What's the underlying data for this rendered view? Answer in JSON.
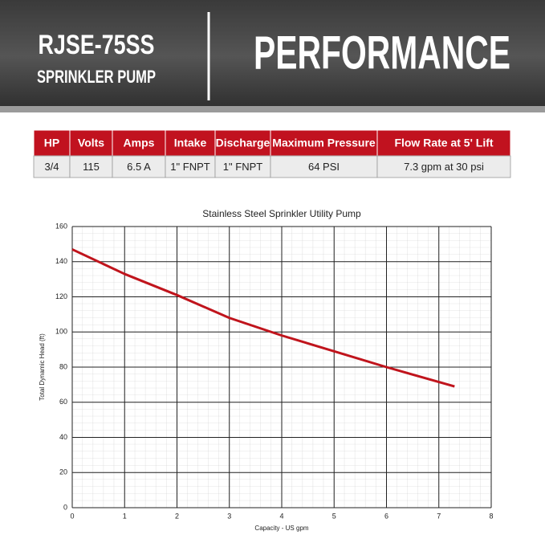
{
  "header": {
    "model": "RJSE-75SS",
    "subtitle": "SPRINKLER PUMP",
    "title": "PERFORMANCE"
  },
  "table": {
    "header": [
      "HP",
      "Volts",
      "Amps",
      "Intake",
      "Discharge",
      "Maximum Pressure",
      "Flow Rate at 5' Lift"
    ],
    "rows": [
      [
        "3/4",
        "115",
        "6.5 A",
        "1\" FNPT",
        "1\" FNPT",
        "64 PSI",
        "7.3 gpm at 30 psi"
      ]
    ]
  },
  "chart_data": {
    "type": "line",
    "title": "Stainless Steel Sprinkler Utility Pump",
    "x_label": "Capacity - US gpm",
    "y_label": "Total Dynamic Head (ft)",
    "x": [
      0,
      1,
      2,
      3,
      4,
      5,
      6,
      7.3
    ],
    "values": [
      147,
      133,
      121,
      108,
      98,
      89,
      80,
      69
    ],
    "color": "#c0141c",
    "xlim": [
      0,
      8
    ],
    "ylim": [
      0,
      160
    ],
    "xticks": [
      0,
      1,
      2,
      3,
      4,
      5,
      6,
      7,
      8
    ],
    "yticks": [
      0,
      20,
      40,
      60,
      80,
      100,
      120,
      140,
      160
    ],
    "grid": true
  }
}
